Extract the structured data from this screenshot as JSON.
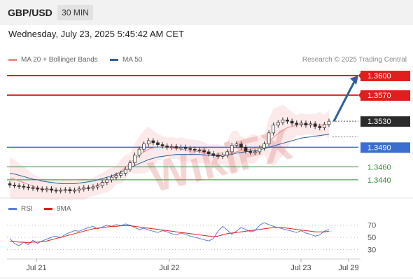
{
  "header": {
    "symbol": "GBP/USD",
    "timeframe": "30 MIN"
  },
  "datetime": "Wednesday, July 23, 2025 5:45:42 AM CET",
  "legend": {
    "ma20": "MA 20 + Bollinger Bands",
    "ma50": "MA 50",
    "ma20_color": "#f08a8a",
    "ma50_color": "#2f5f9e"
  },
  "credit": "Research © 2025 Trading Central",
  "rsi_legend": {
    "rsi": "RSI",
    "ma9": "9MA",
    "rsi_color": "#5b7fd6",
    "ma9_color": "#e02020"
  },
  "watermark": "WikiFX",
  "chart_data": {
    "type": "candlestick",
    "x_ticks": [
      "Jul 21",
      "Jul 22",
      "Jul 23",
      "Jul 29"
    ],
    "y_range": [
      1.3413,
      1.3614
    ],
    "last_price": 1.353,
    "levels": [
      {
        "value": 1.36,
        "label": "1.3600",
        "kind": "resistance",
        "color": "#e01e1e"
      },
      {
        "value": 1.357,
        "label": "1.3570",
        "kind": "resistance",
        "color": "#e01e1e"
      },
      {
        "value": 1.349,
        "label": "1.3490",
        "kind": "pivot",
        "color": "#3a6fd0"
      },
      {
        "value": 1.346,
        "label": "1.3460",
        "kind": "support",
        "color": "#2e8b2e"
      },
      {
        "value": 1.344,
        "label": "1.3440",
        "kind": "support",
        "color": "#2e8b2e"
      }
    ],
    "current_label": {
      "value": 1.353,
      "label": "1.3530"
    },
    "forecast_arrow": {
      "from": 1.353,
      "to": 1.36,
      "direction": "up"
    },
    "price_path": [
      1.3432,
      1.3431,
      1.343,
      1.3429,
      1.3428,
      1.3427,
      1.3426,
      1.3425,
      1.3426,
      1.3424,
      1.3423,
      1.3424,
      1.3425,
      1.3423,
      1.3424,
      1.3426,
      1.3428,
      1.3427,
      1.3429,
      1.3431,
      1.3436,
      1.344,
      1.3444,
      1.3447,
      1.345,
      1.3456,
      1.3466,
      1.3478,
      1.3487,
      1.3495,
      1.35,
      1.3497,
      1.3494,
      1.3492,
      1.349,
      1.3491,
      1.3489,
      1.349,
      1.3488,
      1.3487,
      1.3486,
      1.3485,
      1.3483,
      1.348,
      1.3478,
      1.3476,
      1.3478,
      1.3483,
      1.3493,
      1.3495,
      1.349,
      1.3484,
      1.3482,
      1.3483,
      1.3489,
      1.3495,
      1.3512,
      1.3524,
      1.3528,
      1.3532,
      1.353,
      1.3527,
      1.3525,
      1.3527,
      1.3524,
      1.3526,
      1.3522,
      1.352,
      1.3525,
      1.353
    ],
    "ma20": [
      1.3443,
      1.3441,
      1.3438,
      1.3436,
      1.3433,
      1.343,
      1.3428,
      1.3426,
      1.3425,
      1.3425,
      1.3424,
      1.3424,
      1.3424,
      1.3424,
      1.3424,
      1.3425,
      1.3426,
      1.3427,
      1.3429,
      1.3432,
      1.3435,
      1.3438,
      1.3442,
      1.3447,
      1.3453,
      1.3459,
      1.3466,
      1.3472,
      1.3478,
      1.3483,
      1.3487,
      1.3489,
      1.349,
      1.349,
      1.349,
      1.3489,
      1.3488,
      1.3487,
      1.3486,
      1.3485,
      1.3484,
      1.3483,
      1.3482,
      1.348,
      1.3479,
      1.3478,
      1.3478,
      1.3479,
      1.3481,
      1.3483,
      1.3485,
      1.3486,
      1.3487,
      1.3488,
      1.349,
      1.3494,
      1.3499,
      1.3505,
      1.3511,
      1.3516,
      1.352,
      1.3522,
      1.3524,
      1.3525,
      1.3525,
      1.3525,
      1.3524,
      1.3524,
      1.3524,
      1.3525
    ],
    "ma50": [
      1.345,
      1.3449,
      1.3447,
      1.3445,
      1.3443,
      1.3441,
      1.344,
      1.3438,
      1.3437,
      1.3436,
      1.3435,
      1.3434,
      1.3434,
      1.3434,
      1.3434,
      1.3435,
      1.3436,
      1.3437,
      1.3438,
      1.344,
      1.3442,
      1.3444,
      1.3446,
      1.3449,
      1.3452,
      1.3455,
      1.3458,
      1.3462,
      1.3465,
      1.3468,
      1.3471,
      1.3473,
      1.3475,
      1.3476,
      1.3477,
      1.3478,
      1.3479,
      1.3479,
      1.3479,
      1.3479,
      1.3479,
      1.3479,
      1.3478,
      1.3478,
      1.3477,
      1.3477,
      1.3477,
      1.3478,
      1.3479,
      1.3481,
      1.3482,
      1.3483,
      1.3484,
      1.3485,
      1.3486,
      1.3488,
      1.349,
      1.3492,
      1.3494,
      1.3496,
      1.3498,
      1.35,
      1.3502,
      1.3504,
      1.3505,
      1.3506,
      1.3507,
      1.3508,
      1.3509,
      1.351
    ],
    "rsi": {
      "levels": [
        70,
        50,
        30
      ],
      "range": [
        20,
        80
      ],
      "rsi": [
        48,
        40,
        36,
        42,
        38,
        45,
        40,
        44,
        47,
        50,
        52,
        49,
        55,
        58,
        61,
        60,
        63,
        66,
        68,
        64,
        67,
        70,
        68,
        71,
        69,
        72,
        70,
        66,
        63,
        65,
        62,
        60,
        58,
        61,
        59,
        56,
        54,
        57,
        55,
        52,
        50,
        48,
        46,
        44,
        48,
        60,
        68,
        62,
        55,
        60,
        66,
        63,
        59,
        61,
        70,
        74,
        71,
        68,
        66,
        64,
        62,
        60,
        58,
        61,
        57,
        55,
        52,
        54,
        60,
        63
      ],
      "ma9": [
        44,
        43,
        42,
        42,
        41,
        42,
        42,
        43,
        44,
        46,
        48,
        50,
        52,
        54,
        56,
        58,
        60,
        62,
        64,
        65,
        66,
        67,
        68,
        68,
        69,
        69,
        69,
        68,
        67,
        66,
        65,
        64,
        63,
        62,
        61,
        60,
        59,
        58,
        57,
        56,
        55,
        54,
        53,
        52,
        51,
        52,
        54,
        56,
        57,
        58,
        59,
        60,
        61,
        62,
        63,
        64,
        65,
        66,
        66,
        66,
        65,
        64,
        63,
        62,
        61,
        60,
        59,
        59,
        59,
        60
      ]
    }
  }
}
